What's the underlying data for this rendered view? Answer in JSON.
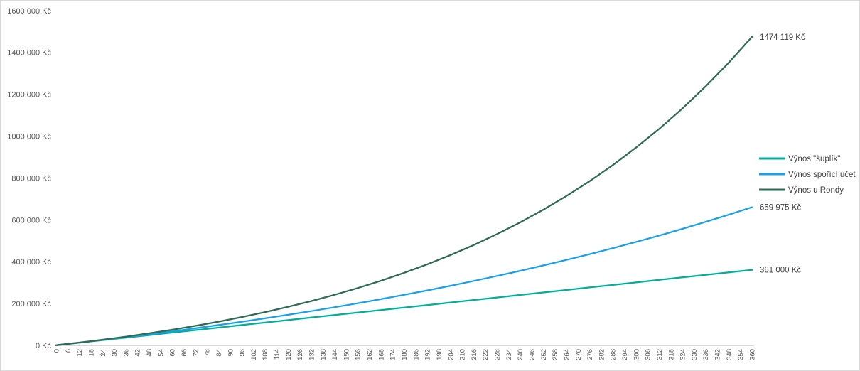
{
  "window": {
    "background": "#ffffff",
    "border_color": "#d9d9d9"
  },
  "chart_data": {
    "type": "line",
    "title": "",
    "xlabel": "",
    "ylabel": "",
    "xlim": [
      0,
      360
    ],
    "ylim": [
      0,
      1600000
    ],
    "grid": false,
    "legend_position": "right",
    "x_tick_rotation": -90,
    "axis_line_color": "#d9d9d9",
    "tick_text_color": "#595959",
    "label_text_color": "#404040",
    "x": [
      0,
      12,
      24,
      36,
      48,
      60,
      72,
      84,
      96,
      108,
      120,
      132,
      144,
      156,
      168,
      180,
      192,
      204,
      216,
      228,
      240,
      252,
      264,
      276,
      288,
      300,
      312,
      324,
      336,
      348,
      360
    ],
    "series": [
      {
        "name": "Výnos \"šuplík\"",
        "color": "#00ae9a",
        "end_label": "361 000 Kč",
        "values": [
          1000,
          13000,
          25000,
          37000,
          49000,
          61000,
          73000,
          85000,
          97000,
          109000,
          121000,
          133000,
          145000,
          157000,
          169000,
          181000,
          193000,
          205000,
          217000,
          229000,
          241000,
          253000,
          265000,
          277000,
          289000,
          301000,
          313000,
          325000,
          337000,
          349000,
          361000
        ]
      },
      {
        "name": "Výnos spořící účet",
        "color": "#18a0e8",
        "end_label": "659 975 Kč",
        "values": [
          1000,
          13243,
          25946,
          39123,
          52797,
          66984,
          81703,
          96974,
          112819,
          129258,
          146314,
          164011,
          182371,
          201421,
          221186,
          241692,
          262968,
          285042,
          307945,
          331708,
          356363,
          381942,
          408482,
          436018,
          464586,
          494228,
          524981,
          556890,
          589996,
          624346,
          659975
        ]
      },
      {
        "name": "Výnos u Rondy",
        "color": "#2e6b52",
        "end_label": "1474 119 Kč",
        "values": [
          1000,
          13527,
          27081,
          41748,
          57618,
          74790,
          93371,
          113477,
          135385,
          158772,
          184244,
          211806,
          241627,
          273899,
          308817,
          346599,
          387482,
          431718,
          479585,
          531378,
          587520,
          648061,
          713678,
          784682,
          861506,
          944866,
          1034570,
          1131912,
          1237233,
          1351190,
          1474119
        ]
      }
    ],
    "xticks": [
      0,
      6,
      12,
      18,
      24,
      30,
      36,
      42,
      48,
      54,
      60,
      66,
      72,
      78,
      84,
      90,
      96,
      102,
      108,
      114,
      120,
      126,
      132,
      138,
      144,
      150,
      156,
      162,
      168,
      174,
      180,
      186,
      192,
      198,
      204,
      210,
      216,
      222,
      228,
      234,
      240,
      246,
      252,
      258,
      264,
      270,
      276,
      282,
      288,
      294,
      300,
      306,
      312,
      318,
      324,
      330,
      336,
      342,
      348,
      354,
      360
    ],
    "yticks": [
      {
        "value": 0,
        "label": "0 Kč"
      },
      {
        "value": 200000,
        "label": "200 000 Kč"
      },
      {
        "value": 400000,
        "label": "400 000 Kč"
      },
      {
        "value": 600000,
        "label": "600 000 Kč"
      },
      {
        "value": 800000,
        "label": "800 000 Kč"
      },
      {
        "value": 1000000,
        "label": "1000 000 Kč"
      },
      {
        "value": 1200000,
        "label": "1200 000 Kč"
      },
      {
        "value": 1400000,
        "label": "1400 000 Kč"
      },
      {
        "value": 1600000,
        "label": "1600 000 Kč"
      }
    ]
  }
}
